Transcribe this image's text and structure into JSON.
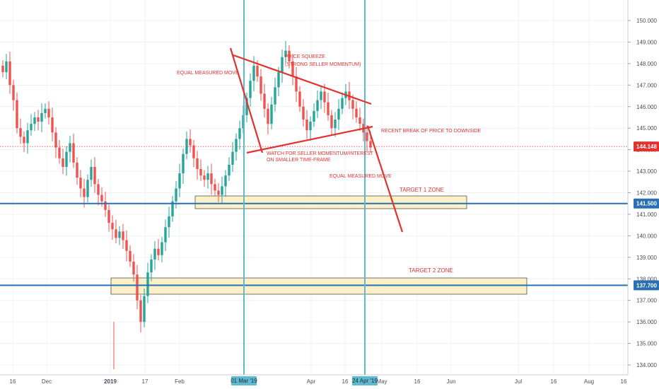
{
  "chart_data": {
    "type": "candlestick",
    "ylim": [
      133.7,
      150.5
    ],
    "grid": true,
    "y_ticks": [
      "150.000",
      "149.000",
      "148.000",
      "147.000",
      "146.000",
      "145.000",
      "144.000",
      "143.000",
      "142.000",
      "141.000",
      "140.000",
      "139.000",
      "138.000",
      "137.000",
      "136.000",
      "135.000",
      "134.000"
    ],
    "x_ticks": [
      "16",
      "Dec",
      "2019",
      "17",
      "Feb",
      "Apr",
      "16",
      "May",
      "16",
      "Jun",
      "Jul",
      "16",
      "Aug",
      "16"
    ],
    "date_markers": [
      "01 Mar '19",
      "24 Apr '19"
    ],
    "price_labels": [
      "144.148",
      "141.500",
      "137.700"
    ],
    "horizontal_levels": [
      141.5,
      137.7
    ],
    "current_price": 144.148,
    "zones": [
      {
        "label": "TARGET 1 ZONE",
        "low": 141.3,
        "high": 141.6
      },
      {
        "label": "TARGET 2 ZONE",
        "low": 137.3,
        "high": 137.95
      }
    ],
    "annotations": [
      "EQUAL MEASURED MOVE",
      "PRICE SQUEEZE",
      "(STRONG SELLER MOMENTUM)",
      "RECENT BREAK OF PRICE TO DOWNSIDE",
      "WATCH FOR SELLER MOMENTUM/INTEREST",
      "ON SMALLER TIME-FRAME",
      "EQUAL MEASURED MOVE"
    ],
    "candles_close_path": [
      147.6,
      148.1,
      147.0,
      146.3,
      145.0,
      144.6,
      144.3,
      144.9,
      145.2,
      145.5,
      145.3,
      145.7,
      145.9,
      145.5,
      144.8,
      144.1,
      143.6,
      143.2,
      143.9,
      144.3,
      143.4,
      142.7,
      142.2,
      141.8,
      142.6,
      143.2,
      142.4,
      141.9,
      141.6,
      141.2,
      140.6,
      140.3,
      139.9,
      140.2,
      139.8,
      139.3,
      138.8,
      138.2,
      137.0,
      136.0,
      137.2,
      138.3,
      138.9,
      139.4,
      139.1,
      139.7,
      140.4,
      140.9,
      141.6,
      142.2,
      142.9,
      143.8,
      144.5,
      144.2,
      143.6,
      143.1,
      142.8,
      142.6,
      142.9,
      142.4,
      142.1,
      141.9,
      142.3,
      142.8,
      143.3,
      143.9,
      144.5,
      145.0,
      145.6,
      146.4,
      147.2,
      147.9,
      147.4,
      146.6,
      145.9,
      145.2,
      146.1,
      146.9,
      147.6,
      148.3,
      148.6,
      148.1,
      147.4,
      146.7,
      146.0,
      145.4,
      144.9,
      145.3,
      145.8,
      146.3,
      146.7,
      146.2,
      145.6,
      145.0,
      145.4,
      145.9,
      146.4,
      146.7,
      146.3,
      145.9,
      145.5,
      145.2,
      144.8,
      144.4,
      144.1
    ]
  }
}
